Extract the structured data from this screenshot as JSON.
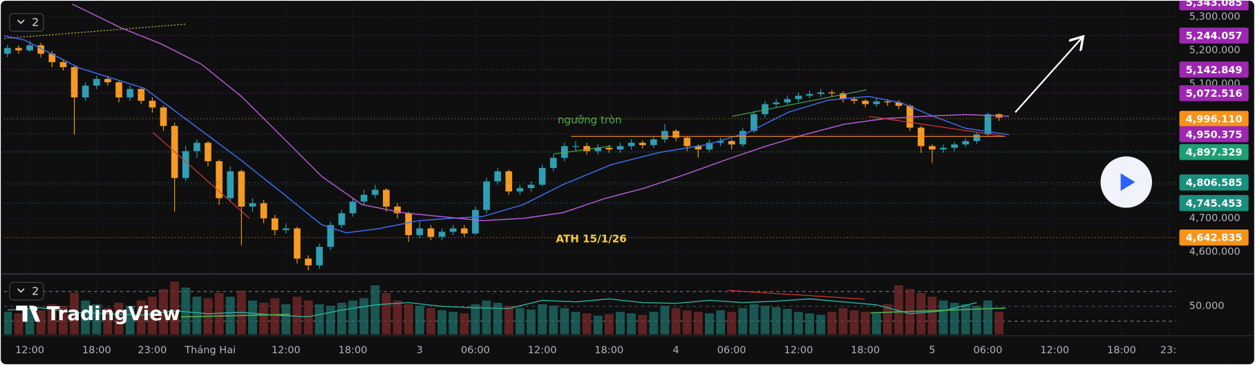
{
  "chart_data": {
    "type": "candlestick",
    "badge": "2",
    "watermark": "TradingView",
    "up_color": "#2f9fb3",
    "down_color": "#f59a23",
    "grid": true,
    "xlim": [
      -2.31,
      102.9
    ],
    "xticks": [
      {
        "value": 0,
        "label": "12:00"
      },
      {
        "value": 6,
        "label": "18:00"
      },
      {
        "value": 11,
        "label": "23:00"
      },
      {
        "value": 16.2,
        "label": "Tháng Hai"
      },
      {
        "value": 23,
        "label": "12:00"
      },
      {
        "value": 29,
        "label": "18:00"
      },
      {
        "value": 35,
        "label": "3"
      },
      {
        "value": 40,
        "label": "06:00"
      },
      {
        "value": 46,
        "label": "12:00"
      },
      {
        "value": 52,
        "label": "18:00"
      },
      {
        "value": 58,
        "label": "4"
      },
      {
        "value": 63,
        "label": "06:00"
      },
      {
        "value": 69,
        "label": "12:00"
      },
      {
        "value": 75,
        "label": "18:00"
      },
      {
        "value": 81,
        "label": "5"
      },
      {
        "value": 86,
        "label": "06:00"
      },
      {
        "value": 92,
        "label": "12:00"
      },
      {
        "value": 98,
        "label": "18:00"
      },
      {
        "value": 102.2,
        "label": "23:"
      }
    ],
    "ylim": [
      4538,
      5338
    ],
    "yticks": [
      {
        "value": 4600,
        "label": "4,600.000"
      },
      {
        "value": 4700,
        "label": "4,700.000"
      },
      {
        "value": 4800,
        "label": "4,800.000"
      },
      {
        "value": 4900,
        "label": "4,900.000"
      },
      {
        "value": 5000,
        "label": "5,000.000"
      },
      {
        "value": 5100,
        "label": "5,100.000"
      },
      {
        "value": 5200,
        "label": "5,200.000"
      },
      {
        "value": 5300,
        "label": "5,300.000"
      }
    ],
    "x": [
      -2,
      -1,
      0,
      1,
      2,
      3,
      4,
      5,
      6,
      7,
      8,
      9,
      10,
      11,
      12,
      13,
      14,
      15,
      16,
      17,
      18,
      19,
      20,
      21,
      22,
      23,
      24,
      25,
      26,
      27,
      28,
      29,
      30,
      31,
      32,
      33,
      34,
      35,
      36,
      37,
      38,
      39,
      40,
      41,
      42,
      43,
      44,
      45,
      46,
      47,
      48,
      49,
      50,
      51,
      52,
      53,
      54,
      55,
      56,
      57,
      58,
      59,
      60,
      61,
      62,
      63,
      64,
      65,
      66,
      67,
      68,
      69,
      70,
      71,
      72,
      73,
      74,
      75,
      76,
      77,
      78,
      79,
      80,
      81,
      82,
      83,
      84,
      85,
      86,
      87
    ],
    "open": [
      5190,
      5207,
      5200,
      5215,
      5190,
      5165,
      5150,
      5060,
      5095,
      5115,
      5105,
      5060,
      5085,
      5050,
      5030,
      4975,
      4820,
      4900,
      4925,
      4870,
      4760,
      4840,
      4735,
      4745,
      4700,
      4665,
      4670,
      4580,
      4560,
      4615,
      4680,
      4715,
      4750,
      4770,
      4785,
      4735,
      4715,
      4650,
      4670,
      4645,
      4660,
      4670,
      4655,
      4725,
      4810,
      4840,
      4780,
      4790,
      4800,
      4850,
      4880,
      4915,
      4915,
      4900,
      4910,
      4905,
      4915,
      4925,
      4918,
      4935,
      4960,
      4940,
      4915,
      4905,
      4925,
      4930,
      4920,
      4960,
      5010,
      5040,
      5045,
      5055,
      5065,
      5070,
      5075,
      5072,
      5055,
      5050,
      5040,
      5048,
      5045,
      5035,
      4970,
      4915,
      4905,
      4910,
      4920,
      4930,
      4950,
      5010
    ],
    "high": [
      5217,
      5215,
      5228,
      5222,
      5198,
      5172,
      5155,
      5105,
      5125,
      5125,
      5110,
      5095,
      5090,
      5060,
      5035,
      4985,
      4915,
      4935,
      4930,
      4875,
      4855,
      4845,
      4760,
      4755,
      4710,
      4685,
      4675,
      4590,
      4625,
      4690,
      4725,
      4760,
      4785,
      4800,
      4790,
      4745,
      4720,
      4690,
      4680,
      4670,
      4680,
      4680,
      4735,
      4820,
      4850,
      4845,
      4800,
      4810,
      4860,
      4890,
      4925,
      4930,
      4925,
      4920,
      4918,
      4925,
      4935,
      4932,
      4945,
      4980,
      4965,
      4945,
      4920,
      4935,
      4940,
      4935,
      4970,
      5020,
      5050,
      5055,
      5065,
      5075,
      5080,
      5085,
      5082,
      5078,
      5062,
      5055,
      5058,
      5055,
      5052,
      5040,
      4975,
      4920,
      4920,
      4928,
      4938,
      4958,
      5015,
      5012
    ],
    "low": [
      5180,
      5190,
      5195,
      5180,
      5150,
      5140,
      4950,
      5050,
      5085,
      5095,
      5045,
      5050,
      5040,
      5015,
      4960,
      4720,
      4810,
      4880,
      4855,
      4740,
      4750,
      4620,
      4720,
      4685,
      4650,
      4655,
      4565,
      4545,
      4550,
      4605,
      4670,
      4705,
      4740,
      4760,
      4720,
      4700,
      4630,
      4640,
      4635,
      4635,
      4650,
      4645,
      4650,
      4715,
      4800,
      4770,
      4770,
      4780,
      4795,
      4840,
      4870,
      4900,
      4890,
      4890,
      4895,
      4895,
      4905,
      4908,
      4910,
      4925,
      4930,
      4900,
      4880,
      4895,
      4915,
      4905,
      4912,
      4955,
      5000,
      5030,
      5038,
      5045,
      5058,
      5062,
      5062,
      5045,
      5040,
      5030,
      5032,
      5035,
      5025,
      4960,
      4895,
      4865,
      4895,
      4900,
      4912,
      4922,
      4945,
      4990
    ],
    "close": [
      5207,
      5200,
      5215,
      5190,
      5165,
      5150,
      5060,
      5095,
      5115,
      5105,
      5060,
      5085,
      5050,
      5030,
      4975,
      4820,
      4900,
      4925,
      4870,
      4760,
      4840,
      4735,
      4745,
      4700,
      4665,
      4670,
      4580,
      4560,
      4615,
      4680,
      4715,
      4750,
      4770,
      4785,
      4735,
      4715,
      4650,
      4670,
      4645,
      4660,
      4670,
      4655,
      4725,
      4810,
      4840,
      4780,
      4790,
      4800,
      4850,
      4880,
      4915,
      4915,
      4900,
      4910,
      4905,
      4915,
      4925,
      4918,
      4935,
      4960,
      4940,
      4915,
      4905,
      4925,
      4930,
      4920,
      4960,
      5010,
      5040,
      5045,
      5055,
      5065,
      5070,
      5075,
      5072,
      5055,
      5050,
      5040,
      5048,
      5045,
      5035,
      4970,
      4915,
      4905,
      4910,
      4920,
      4930,
      4950,
      5010,
      5000
    ],
    "lines": [
      {
        "color": "#3d6ef0",
        "x": [
          -2.3,
          -0.5,
          4.5,
          10.3,
          16.1,
          19,
          22.6,
          26.2,
          28.4,
          31.3,
          34.9,
          37.8,
          40.6,
          44.3,
          47.9,
          52.2,
          56.5,
          60.9,
          64.5,
          68.1,
          71.7,
          75.3,
          78.2,
          81.1,
          84,
          87.9
        ],
        "values": [
          5243,
          5231,
          5147,
          5087,
          4944,
          4872,
          4777,
          4681,
          4657,
          4669,
          4693,
          4700,
          4705,
          4741,
          4801,
          4860,
          4896,
          4920,
          4956,
          5016,
          5052,
          5063,
          5044,
          5004,
          4968,
          4949
        ]
      },
      {
        "color": "#b45cd6",
        "x": [
          3.8,
          8.2,
          11.8,
          15.4,
          19,
          22.6,
          26.2,
          29.8,
          33.4,
          37,
          40.6,
          44.3,
          47.9,
          51.5,
          55.1,
          58.7,
          62.3,
          65.9,
          69.5,
          73.1,
          76.8,
          80.4,
          84,
          87.9
        ],
        "values": [
          5338,
          5267,
          5219,
          5159,
          5063,
          4944,
          4825,
          4741,
          4717,
          4705,
          4693,
          4700,
          4717,
          4758,
          4789,
          4829,
          4872,
          4913,
          4949,
          4980,
          4997,
          5004,
          5009,
          5004
        ]
      }
    ],
    "price_tags": [
      {
        "value": 5343.085,
        "label": "5,343.085",
        "color": "#9c27b0"
      },
      {
        "value": 5244.057,
        "label": "5,244.057",
        "color": "#9c27b0"
      },
      {
        "value": 5142.849,
        "label": "5,142.849",
        "color": "#9c27b0"
      },
      {
        "value": 5072.516,
        "label": "5,072.516",
        "color": "#9c27b0"
      },
      {
        "value": 4996.11,
        "label": "4,996.110",
        "color": "#f7931a"
      },
      {
        "value": 4950.375,
        "label": "4,950.375",
        "color": "#9c27b0"
      },
      {
        "value": 4897.329,
        "label": "4,897.329",
        "color": "#1f9e74"
      },
      {
        "value": 4806.585,
        "label": "4,806.585",
        "color": "#1a8f7d"
      },
      {
        "value": 4745.453,
        "label": "4,745.453",
        "color": "#1a8f7d"
      },
      {
        "value": 4642.835,
        "label": "4,642.835",
        "color": "#f7931a"
      }
    ],
    "annotations": [
      {
        "text": "ngưỡng tròn",
        "color": "#4caf50"
      },
      {
        "text": "ATH 15/1/26",
        "color": "#f5d142"
      }
    ],
    "indicator": {
      "badge": "2",
      "ylim": [
        12,
        92
      ],
      "yticks": [
        {
          "value": 50,
          "label": "50.000"
        }
      ],
      "levels": [
        70,
        30
      ],
      "volume_up_color": "#1f6f6a",
      "volume_down_color": "#7a2a2a",
      "volume": [
        30,
        28,
        35,
        32,
        40,
        38,
        55,
        45,
        40,
        35,
        42,
        38,
        45,
        50,
        60,
        70,
        62,
        50,
        48,
        55,
        50,
        58,
        45,
        42,
        48,
        40,
        50,
        45,
        40,
        38,
        42,
        45,
        48,
        65,
        55,
        45,
        40,
        38,
        35,
        32,
        30,
        28,
        40,
        45,
        42,
        38,
        35,
        33,
        40,
        38,
        35,
        30,
        28,
        25,
        27,
        30,
        28,
        26,
        30,
        38,
        35,
        32,
        30,
        28,
        32,
        30,
        35,
        40,
        38,
        36,
        34,
        30,
        28,
        26,
        30,
        35,
        32,
        30,
        28,
        40,
        65,
        60,
        55,
        50,
        45,
        42,
        40,
        38,
        45,
        30
      ],
      "rsi": {
        "color": "#2bb3a0",
        "x": [
          -2,
          1,
          4,
          7,
          10,
          13,
          16,
          19,
          22,
          25,
          28,
          31,
          34,
          37,
          40,
          43,
          46,
          49,
          52,
          55,
          58,
          61,
          64,
          67,
          70,
          73,
          76,
          79,
          82,
          85
        ],
        "values": [
          45,
          48,
          42,
          40,
          38,
          44,
          40,
          42,
          38,
          36,
          45,
          52,
          55,
          50,
          48,
          47,
          58,
          56,
          60,
          55,
          54,
          58,
          55,
          57,
          60,
          56,
          52,
          40,
          44,
          55
        ]
      }
    }
  }
}
